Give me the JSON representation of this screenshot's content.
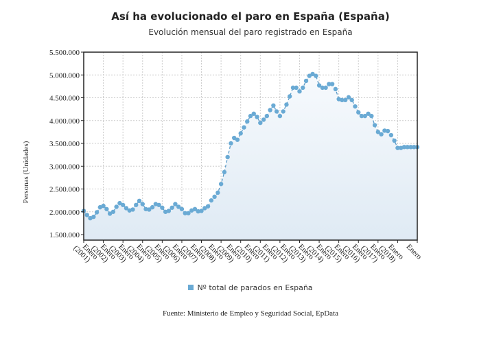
{
  "chart_data": {
    "type": "area",
    "title": "Así ha evolucionado el paro en España (España)",
    "subtitle": "Evolución mensual del paro registrado en España",
    "ylabel": "Personas (Unidades)",
    "xlabel": "",
    "source": "Fuente: Ministerio de Empleo y Seguridad Social, EpData",
    "legend": {
      "label": "Nº total de parados en España",
      "position": "bottom"
    },
    "ylim": [
      1380000,
      5500000
    ],
    "xlim": [
      2001,
      2018
    ],
    "yticks": [
      1500000,
      2000000,
      2500000,
      3000000,
      3500000,
      4000000,
      4500000,
      5000000,
      5500000
    ],
    "ytick_labels": [
      "1.500.000",
      "2.000.000",
      "2.500.000",
      "3.000.000",
      "3.500.000",
      "4.000.000",
      "4.500.000",
      "5.000.000",
      "5.500.000"
    ],
    "xticks": [
      {
        "x": 2001,
        "label": "Enero",
        "sub": "(2001)"
      },
      {
        "x": 2002,
        "label": "Enero",
        "sub": "(2002)"
      },
      {
        "x": 2003,
        "label": "Enero",
        "sub": "(2003)"
      },
      {
        "x": 2004,
        "label": "Enero",
        "sub": "(2004)"
      },
      {
        "x": 2005,
        "label": "Enero",
        "sub": "(2005)"
      },
      {
        "x": 2006,
        "label": "Enero",
        "sub": "(2006)"
      },
      {
        "x": 2007,
        "label": "Enero",
        "sub": "(2007)"
      },
      {
        "x": 2008,
        "label": "Enero",
        "sub": "(2008)"
      },
      {
        "x": 2009,
        "label": "Enero",
        "sub": "(2009)"
      },
      {
        "x": 2010,
        "label": "Enero",
        "sub": "(2010)"
      },
      {
        "x": 2011,
        "label": "Enero",
        "sub": "(2011)"
      },
      {
        "x": 2012,
        "label": "Enero",
        "sub": "(2012)"
      },
      {
        "x": 2013,
        "label": "Enero",
        "sub": "(2013)"
      },
      {
        "x": 2014,
        "label": "Enero",
        "sub": "(2014)"
      },
      {
        "x": 2015,
        "label": "Enero",
        "sub": "(2015)"
      },
      {
        "x": 2016,
        "label": "Enero",
        "sub": "(2016)"
      },
      {
        "x": 2017,
        "label": "Enero",
        "sub": "(2017)"
      },
      {
        "x": 2018,
        "label": "Enero",
        "sub": "(2018)"
      },
      {
        "x": 2019,
        "label": "Enero",
        "sub": ""
      }
    ],
    "x_start": 2001,
    "x_step_years": 0.16667,
    "values": [
      2020000,
      1930000,
      1860000,
      1890000,
      1990000,
      2100000,
      2130000,
      2060000,
      1960000,
      2000000,
      2110000,
      2190000,
      2150000,
      2080000,
      2030000,
      2050000,
      2150000,
      2240000,
      2170000,
      2060000,
      2050000,
      2100000,
      2170000,
      2150000,
      2090000,
      2000000,
      2020000,
      2090000,
      2170000,
      2110000,
      2060000,
      1970000,
      1970000,
      2030000,
      2060000,
      2010000,
      2020000,
      2080000,
      2120000,
      2250000,
      2330000,
      2420000,
      2610000,
      2870000,
      3200000,
      3500000,
      3620000,
      3580000,
      3720000,
      3850000,
      3980000,
      4100000,
      4150000,
      4080000,
      3950000,
      4020000,
      4100000,
      4230000,
      4330000,
      4200000,
      4100000,
      4200000,
      4350000,
      4530000,
      4720000,
      4720000,
      4640000,
      4720000,
      4870000,
      4980000,
      5020000,
      4980000,
      4770000,
      4720000,
      4720000,
      4800000,
      4800000,
      4690000,
      4470000,
      4450000,
      4450000,
      4510000,
      4450000,
      4310000,
      4180000,
      4100000,
      4100000,
      4150000,
      4100000,
      3900000,
      3750000,
      3700000,
      3780000,
      3770000,
      3680000,
      3560000,
      3400000,
      3400000,
      3420000,
      3420000,
      3420000,
      3420000,
      3420000
    ],
    "colors": {
      "series": "#6aaad4",
      "line": "#5a9ac8",
      "area_top": "#f7fafd",
      "area_bottom": "#dfeaf4"
    }
  }
}
